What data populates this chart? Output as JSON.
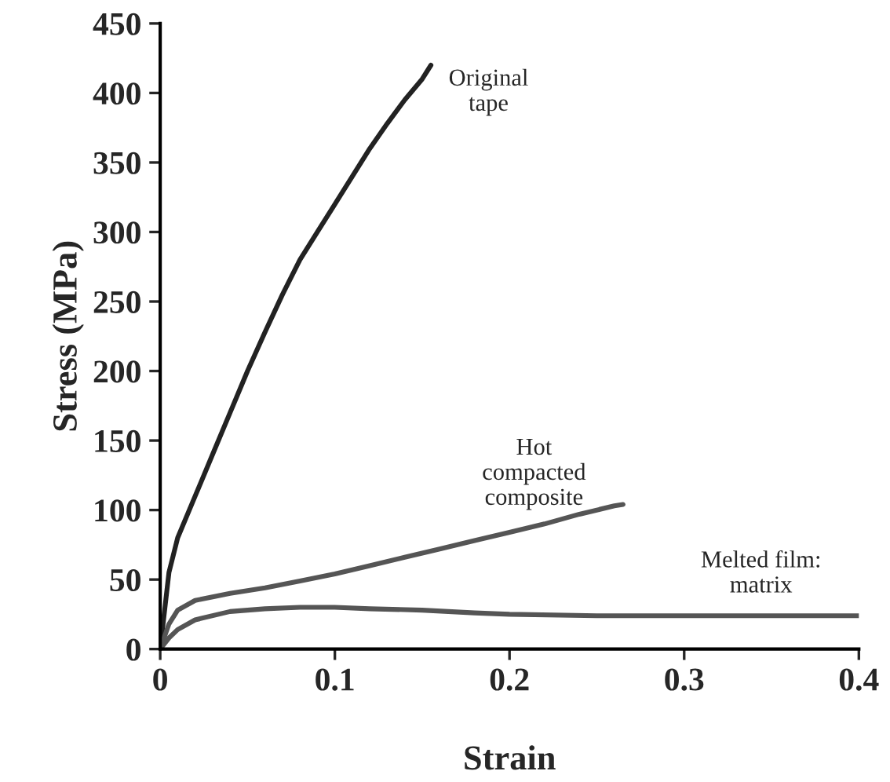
{
  "chart_data": {
    "type": "line",
    "xlabel": "Strain",
    "ylabel": "Stress (MPa)",
    "xlim": [
      0,
      0.4
    ],
    "xticks": [
      0,
      0.1,
      0.2,
      0.3,
      0.4
    ],
    "ylim": [
      0,
      450
    ],
    "yticks": [
      0,
      50,
      100,
      150,
      200,
      250,
      300,
      350,
      400,
      450
    ],
    "grid": false,
    "marker": "none",
    "line_style": "solid",
    "series": [
      {
        "color": "#222222",
        "x": [
          0,
          0.005,
          0.01,
          0.02,
          0.03,
          0.04,
          0.05,
          0.06,
          0.07,
          0.08,
          0.09,
          0.1,
          0.11,
          0.12,
          0.13,
          0.14,
          0.15,
          0.155
        ],
        "values": [
          0,
          55,
          80,
          110,
          140,
          170,
          200,
          228,
          255,
          280,
          300,
          320,
          340,
          360,
          378,
          395,
          410,
          420
        ]
      },
      {
        "color": "#555555",
        "x": [
          0,
          0.005,
          0.01,
          0.02,
          0.04,
          0.06,
          0.08,
          0.1,
          0.12,
          0.14,
          0.16,
          0.18,
          0.2,
          0.22,
          0.24,
          0.26,
          0.265
        ],
        "values": [
          0,
          18,
          28,
          35,
          40,
          44,
          49,
          54,
          60,
          66,
          72,
          78,
          84,
          90,
          97,
          103,
          104
        ]
      },
      {
        "color": "#555555",
        "x": [
          0,
          0.005,
          0.01,
          0.02,
          0.04,
          0.06,
          0.08,
          0.1,
          0.12,
          0.15,
          0.18,
          0.2,
          0.25,
          0.3,
          0.35,
          0.4
        ],
        "values": [
          0,
          8,
          14,
          21,
          27,
          29,
          30,
          30,
          29,
          28,
          26,
          25,
          24,
          24,
          24,
          24
        ]
      }
    ],
    "annotations": [
      "Original\ntape",
      "Hot\ncompacted\ncomposite",
      "Melted film:\nmatrix"
    ]
  }
}
